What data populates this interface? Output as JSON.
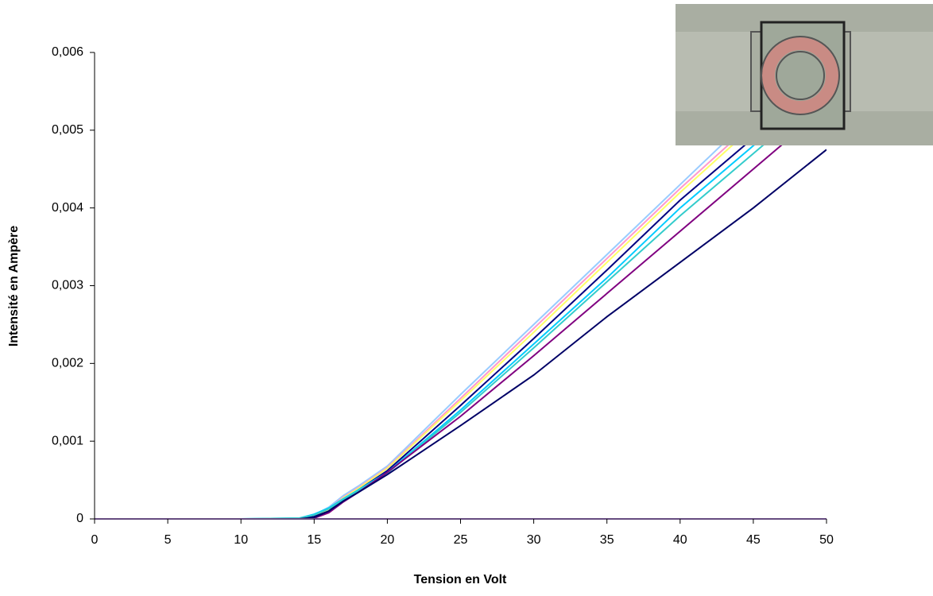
{
  "chart_data": {
    "type": "line",
    "x_label": "Tension en Volt",
    "y_label": "Intensité en Ampère",
    "x": [
      0,
      5,
      10,
      14,
      15,
      16,
      17,
      18,
      20,
      25,
      30,
      35,
      40,
      45,
      50
    ],
    "series": [
      {
        "color": "#99ccff",
        "values": [
          0,
          0,
          0,
          0,
          5e-05,
          0.00015,
          0.0003,
          0.00042,
          0.00068,
          0.0016,
          0.0025,
          0.0034,
          0.0043,
          0.0052,
          0.0061
        ]
      },
      {
        "color": "#ff99cc",
        "values": [
          0,
          0,
          0,
          0,
          4e-05,
          0.00013,
          0.00028,
          0.0004,
          0.00066,
          0.00155,
          0.00245,
          0.00335,
          0.00425,
          0.0051,
          0.006
        ]
      },
      {
        "color": "#ffff66",
        "values": [
          0,
          0,
          0,
          0,
          4e-05,
          0.00012,
          0.00027,
          0.00039,
          0.00065,
          0.00152,
          0.0024,
          0.0033,
          0.0042,
          0.00505,
          0.0059
        ]
      },
      {
        "color": "#000080",
        "values": [
          0,
          0,
          0,
          0,
          3e-05,
          0.0001,
          0.00025,
          0.00037,
          0.00062,
          0.00146,
          0.00232,
          0.0032,
          0.0041,
          0.0049,
          0.0057
        ]
      },
      {
        "color": "#00ccff",
        "values": [
          0,
          0,
          0,
          1e-05,
          6e-05,
          0.00014,
          0.00026,
          0.00037,
          0.0006,
          0.0014,
          0.00225,
          0.0031,
          0.004,
          0.0048,
          0.0056
        ]
      },
      {
        "color": "#33cccc",
        "values": [
          0,
          0,
          0,
          1e-05,
          5e-05,
          0.00013,
          0.00025,
          0.00036,
          0.00059,
          0.00137,
          0.0022,
          0.00305,
          0.0039,
          0.0047,
          0.0055
        ]
      },
      {
        "color": "#800080",
        "values": [
          0,
          0,
          0,
          0,
          1e-05,
          8e-05,
          0.00022,
          0.00034,
          0.0006,
          0.00132,
          0.0021,
          0.0029,
          0.0037,
          0.0045,
          0.0053
        ]
      },
      {
        "color": "#000066",
        "values": [
          0,
          0,
          0,
          0,
          2e-05,
          0.0001,
          0.00023,
          0.00034,
          0.00057,
          0.0012,
          0.00185,
          0.0026,
          0.0033,
          0.004,
          0.00475
        ]
      },
      {
        "color": "#cc99ff",
        "values": [
          0,
          0,
          0,
          0,
          0,
          0,
          0,
          0,
          0,
          0,
          0,
          0,
          0,
          0,
          0
        ]
      }
    ],
    "xlim": [
      0,
      50
    ],
    "xticks": [
      0,
      5,
      10,
      15,
      20,
      25,
      30,
      35,
      40,
      45,
      50
    ],
    "ylim": [
      0,
      0.006
    ],
    "yticks": [
      0,
      {
        "value": 0.001,
        "label": "0,001"
      },
      {
        "value": 0.002,
        "label": "0,002"
      },
      {
        "value": 0.003,
        "label": "0,003"
      },
      {
        "value": 0.004,
        "label": "0,004"
      },
      {
        "value": 0.005,
        "label": "0,005"
      },
      {
        "value": 0.006,
        "label": "0,006"
      }
    ],
    "grid": false
  }
}
